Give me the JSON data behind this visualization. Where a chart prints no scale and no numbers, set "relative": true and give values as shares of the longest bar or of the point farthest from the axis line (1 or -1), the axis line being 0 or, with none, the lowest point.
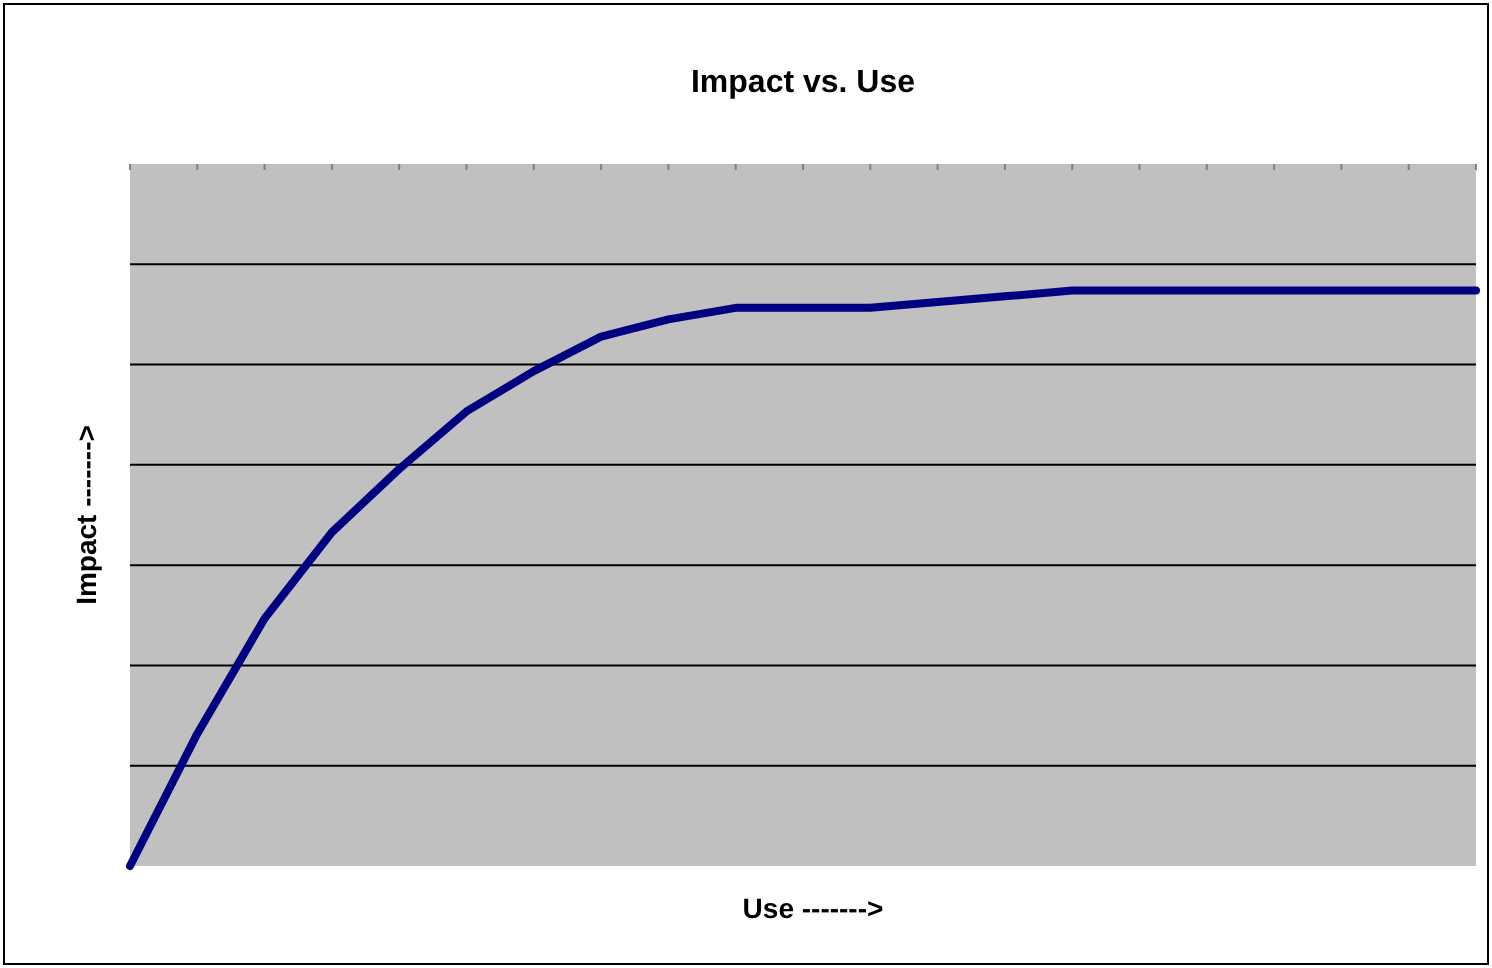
{
  "chart_data": {
    "type": "line",
    "title": "Impact vs. Use",
    "xlabel": "Use ------->",
    "ylabel": "Impact ------->",
    "relative": true,
    "grid": "y",
    "line_style": "solid",
    "categories": [
      null,
      null,
      null,
      null,
      null,
      null,
      null,
      null,
      null,
      null,
      null,
      null,
      null,
      null,
      null,
      null,
      null,
      null,
      null,
      null,
      null
    ],
    "series": [
      {
        "color": "#000080",
        "values": [
          0,
          0.23,
          0.43,
          0.58,
          0.69,
          0.79,
          0.86,
          0.92,
          0.95,
          0.97,
          0.97,
          0.97,
          0.98,
          0.99,
          1,
          1,
          1,
          1,
          1,
          1,
          1
        ]
      }
    ]
  }
}
